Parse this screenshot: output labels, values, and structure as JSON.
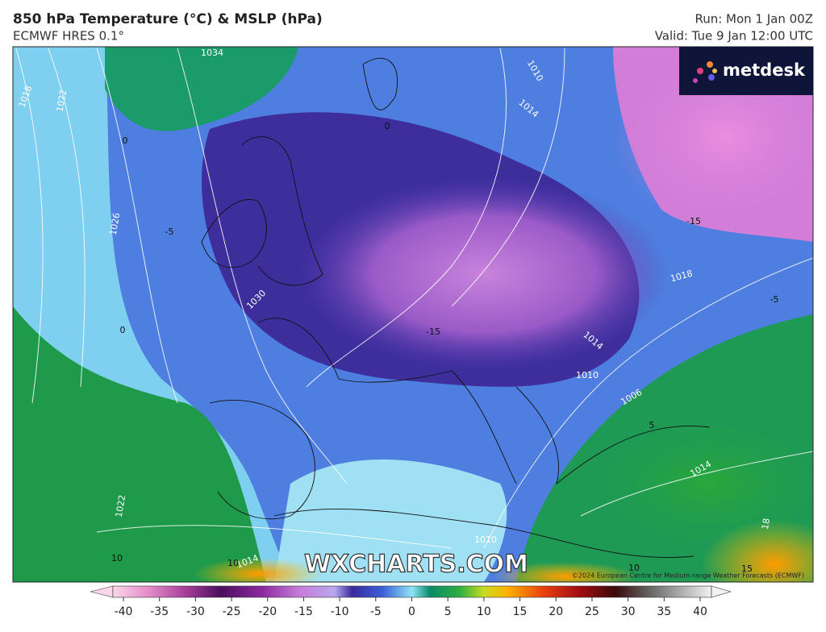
{
  "header": {
    "title": "850 hPa Temperature (°C) & MSLP (hPa)",
    "subtitle": "ECMWF HRES 0.1°",
    "run": "Run: Mon 1 Jan 00Z",
    "valid": "Valid: Tue 9 Jan 12:00 UTC"
  },
  "logo": "metdesk",
  "watermark": "WXCHARTS.COM",
  "copyright": "©2024 European Centre for Medium-range Weather Forecasts (ECMWF)",
  "map_labels": [
    "1034",
    "1018",
    "1022",
    "1026",
    "1030",
    "1010",
    "1014",
    "1018",
    "1014",
    "1010",
    "1006",
    "1014",
    "1022",
    "1010",
    "1014",
    "10",
    "0",
    "0",
    "-5",
    "-15",
    "-5",
    "0",
    "-15",
    "5",
    "10",
    "10",
    "15",
    "18"
  ],
  "colorbar": {
    "ticks": [
      -40,
      -35,
      -30,
      -25,
      -20,
      -15,
      -10,
      -5,
      0,
      5,
      10,
      15,
      20,
      25,
      30,
      35,
      40
    ]
  }
}
